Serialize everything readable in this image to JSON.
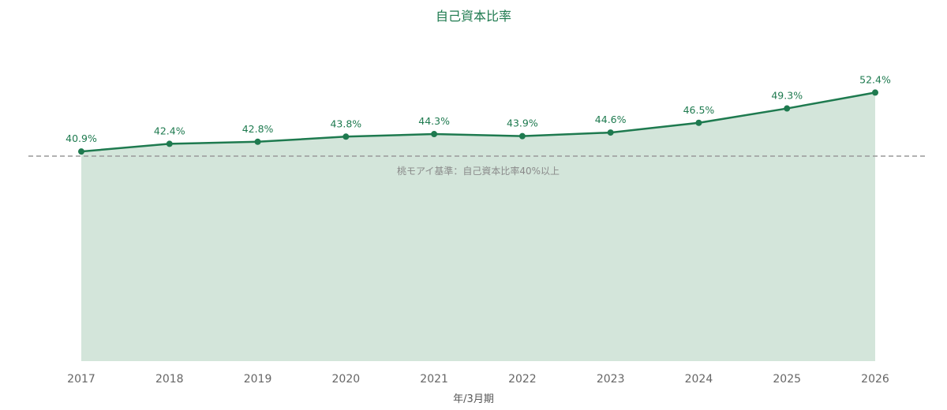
{
  "chart_data": {
    "type": "area",
    "title": "自己資本比率",
    "xlabel": "年/3月期",
    "ylabel": "",
    "categories": [
      "2017",
      "2018",
      "2019",
      "2020",
      "2021",
      "2022",
      "2023",
      "2024",
      "2025",
      "2026"
    ],
    "series": [
      {
        "values": [
          40.9,
          42.4,
          42.8,
          43.8,
          44.3,
          43.9,
          44.6,
          46.5,
          49.3,
          52.4
        ],
        "value_labels": [
          "40.9%",
          "42.4%",
          "42.8%",
          "43.8%",
          "44.3%",
          "43.9%",
          "44.6%",
          "46.5%",
          "49.3%",
          "52.4%"
        ]
      }
    ],
    "reference_line": {
      "value": 40,
      "label": "桃モアイ基準：自己資本比率40%以上",
      "style": "dashed"
    },
    "ylim": [
      0,
      56
    ],
    "grid": false,
    "colors": {
      "line": "#1e7a4f",
      "area": "#d3e5da",
      "reference": "#999999"
    }
  }
}
